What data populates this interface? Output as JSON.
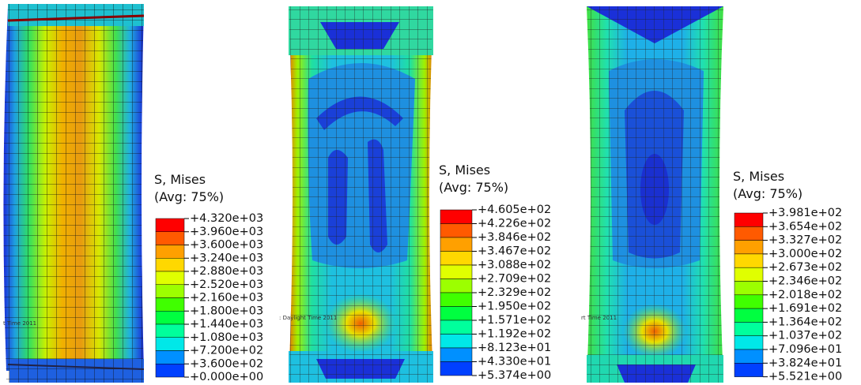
{
  "panels": [
    {
      "legend": {
        "title": "S, Mises",
        "subtitle": "(Avg: 75%)",
        "levels": [
          "+4.320e+03",
          "+3.960e+03",
          "+3.600e+03",
          "+3.240e+03",
          "+2.880e+03",
          "+2.520e+03",
          "+2.160e+03",
          "+1.800e+03",
          "+1.440e+03",
          "+1.080e+03",
          "+7.200e+02",
          "+3.600e+02",
          "+0.000e+00"
        ]
      },
      "stamp": "t Time 2011"
    },
    {
      "legend": {
        "title": "S, Mises",
        "subtitle": "(Avg: 75%)",
        "levels": [
          "+4.605e+02",
          "+4.226e+02",
          "+3.846e+02",
          "+3.467e+02",
          "+3.088e+02",
          "+2.709e+02",
          "+2.329e+02",
          "+1.950e+02",
          "+1.571e+02",
          "+1.192e+02",
          "+8.123e+01",
          "+4.330e+01",
          "+5.374e+00"
        ]
      },
      "stamp": ": Daylight Time 2011"
    },
    {
      "legend": {
        "title": "S, Mises",
        "subtitle": "(Avg: 75%)",
        "levels": [
          "+3.981e+02",
          "+3.654e+02",
          "+3.327e+02",
          "+3.000e+02",
          "+2.673e+02",
          "+2.346e+02",
          "+2.018e+02",
          "+1.691e+02",
          "+1.364e+02",
          "+1.037e+02",
          "+7.096e+01",
          "+3.824e+01",
          "+5.521e+00"
        ]
      },
      "stamp": "rt Time 2011"
    }
  ]
}
